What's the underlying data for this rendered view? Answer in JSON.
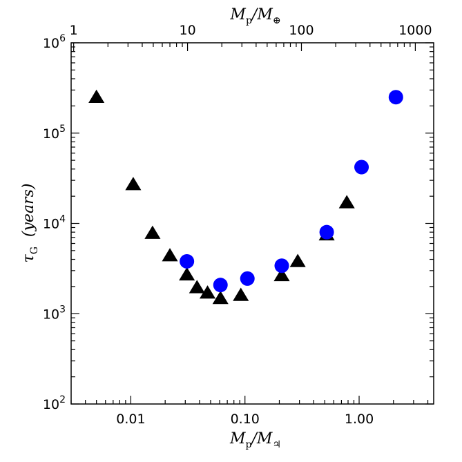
{
  "chart_data": {
    "type": "scatter",
    "x_scale": "log",
    "y_scale": "log",
    "xlim": [
      0.003,
      4.5
    ],
    "ylim": [
      100,
      1000000
    ],
    "top_xlim": [
      0.95,
      1450
    ],
    "xlabel_bottom": "Mp/M♃",
    "xlabel_top": "Mp/M⊕",
    "ylabel": "τG (years)",
    "bottom_tick_labels": [
      {
        "value": 0.01,
        "label": "0.01"
      },
      {
        "value": 0.1,
        "label": "0.10"
      },
      {
        "value": 1.0,
        "label": "1.00"
      }
    ],
    "top_tick_labels": [
      {
        "value": 1,
        "label": "1"
      },
      {
        "value": 10,
        "label": "10"
      },
      {
        "value": 100,
        "label": "100"
      },
      {
        "value": 1000,
        "label": "1000"
      }
    ],
    "y_tick_labels": [
      {
        "value": 100,
        "base": "10",
        "exp": "2"
      },
      {
        "value": 1000,
        "base": "10",
        "exp": "3"
      },
      {
        "value": 10000,
        "base": "10",
        "exp": "4"
      },
      {
        "value": 100000,
        "base": "10",
        "exp": "5"
      },
      {
        "value": 1000000,
        "base": "10",
        "exp": "6"
      }
    ],
    "series": [
      {
        "marker": "triangle",
        "color": "#000000",
        "points": [
          {
            "x": 0.005,
            "y": 250000
          },
          {
            "x": 0.0105,
            "y": 27000
          },
          {
            "x": 0.0155,
            "y": 7800
          },
          {
            "x": 0.022,
            "y": 4400
          },
          {
            "x": 0.031,
            "y": 2700
          },
          {
            "x": 0.038,
            "y": 1950
          },
          {
            "x": 0.047,
            "y": 1700
          },
          {
            "x": 0.061,
            "y": 1480
          },
          {
            "x": 0.092,
            "y": 1600
          },
          {
            "x": 0.21,
            "y": 2650
          },
          {
            "x": 0.29,
            "y": 3800
          },
          {
            "x": 0.52,
            "y": 7500
          },
          {
            "x": 0.78,
            "y": 17000
          }
        ]
      },
      {
        "marker": "circle",
        "color": "#0000ff",
        "points": [
          {
            "x": 0.031,
            "y": 3800
          },
          {
            "x": 0.061,
            "y": 2080
          },
          {
            "x": 0.105,
            "y": 2450
          },
          {
            "x": 0.21,
            "y": 3400
          },
          {
            "x": 0.52,
            "y": 8000
          },
          {
            "x": 1.05,
            "y": 42000
          },
          {
            "x": 2.1,
            "y": 250000
          }
        ]
      }
    ]
  }
}
